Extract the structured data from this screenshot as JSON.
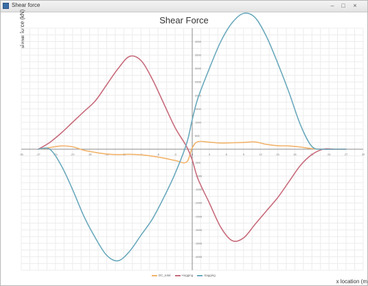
{
  "window": {
    "title": "Shear force",
    "min_glyph": "–",
    "max_glyph": "□",
    "close_glyph": "×"
  },
  "chart_data": {
    "type": "line",
    "title": "Shear Force",
    "xlabel": "x location (m",
    "ylabel": "shear force (kN)",
    "grid": true,
    "legend_position": "bottom",
    "xlim": [
      -30,
      30
    ],
    "ylim": [
      -4500,
      4500
    ],
    "x_ticks": [
      -30,
      -27,
      -24,
      -21,
      -18,
      -15,
      -12,
      -9,
      -6,
      -3,
      0,
      3,
      6,
      9,
      12,
      15,
      18,
      21,
      24,
      27,
      30
    ],
    "y_ticks": [
      -4000,
      -3500,
      -3000,
      -2500,
      -2000,
      -1500,
      -1000,
      -500,
      0,
      500,
      1000,
      1500,
      2000,
      2500,
      3000,
      3500,
      4000
    ],
    "series": [
      {
        "name": "DC_total",
        "color": "#f2b36b",
        "x": [
          -27,
          -25,
          -23,
          -21,
          -19,
          -17,
          -15,
          -13,
          -11,
          -9,
          -7,
          -5,
          -3,
          -1,
          0,
          1,
          3,
          5,
          7,
          9,
          11,
          13,
          15,
          17,
          19,
          21,
          23,
          25,
          27
        ],
        "y": [
          0,
          60,
          120,
          90,
          -40,
          -120,
          -180,
          -200,
          -190,
          -210,
          -260,
          -330,
          -420,
          -480,
          50,
          280,
          260,
          230,
          240,
          250,
          270,
          180,
          130,
          120,
          80,
          20,
          0,
          0,
          0
        ]
      },
      {
        "name": "Hogging",
        "color": "#c86a7a",
        "x": [
          -27,
          -25,
          -23,
          -21,
          -19,
          -17,
          -15,
          -13,
          -11,
          -9,
          -7,
          -5,
          -3,
          -1,
          0,
          1,
          3,
          5,
          7,
          9,
          11,
          13,
          15,
          17,
          19,
          21,
          23,
          25,
          27
        ],
        "y": [
          0,
          250,
          600,
          1000,
          1400,
          1800,
          2400,
          3000,
          3450,
          3300,
          2600,
          1700,
          800,
          100,
          -400,
          -1100,
          -2000,
          -2900,
          -3400,
          -3300,
          -2800,
          -2300,
          -1800,
          -1200,
          -600,
          -200,
          0,
          0,
          0
        ]
      },
      {
        "name": "Sagging",
        "color": "#6aa9bd",
        "x": [
          -27,
          -25,
          -23,
          -21,
          -19,
          -17,
          -15,
          -13,
          -11,
          -9,
          -7,
          -5,
          -3,
          -1,
          0,
          1,
          3,
          5,
          7,
          9,
          11,
          13,
          15,
          17,
          19,
          21,
          23,
          25,
          27
        ],
        "y": [
          0,
          0,
          -600,
          -1500,
          -2500,
          -3300,
          -3950,
          -4150,
          -3800,
          -3200,
          -2600,
          -1800,
          -900,
          200,
          1100,
          1900,
          3000,
          4000,
          4700,
          5050,
          4900,
          4200,
          3200,
          2100,
          900,
          100,
          0,
          0,
          0
        ]
      }
    ]
  }
}
